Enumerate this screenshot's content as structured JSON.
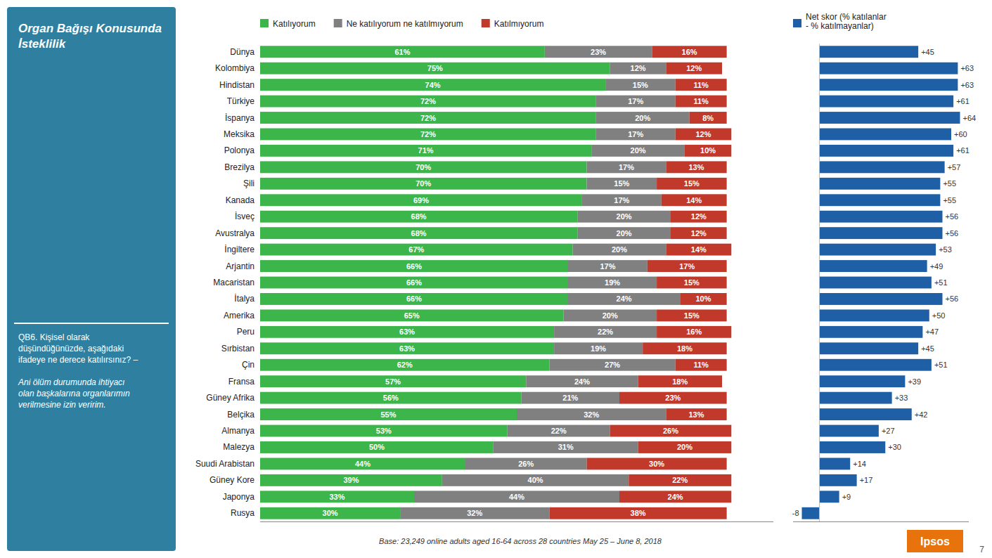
{
  "chart_data": [
    {
      "type": "bar",
      "orientation": "horizontal",
      "stacked": true,
      "title": "Organ Bağışı Konusunda\nİsteklilik",
      "categories": [
        "Dünya",
        "Kolombiya",
        "Hindistan",
        "Türkiye",
        "İspanya",
        "Meksika",
        "Polonya",
        "Brezilya",
        "Şili",
        "Kanada",
        "İsveç",
        "Avustralya",
        "İngiltere",
        "Arjantin",
        "Macaristan",
        "İtalya",
        "Amerika",
        "Peru",
        "Sırbistan",
        "Çin",
        "Fransa",
        "Güney Afrika",
        "Belçika",
        "Almanya",
        "Malezya",
        "Suudi Arabistan",
        "Güney Kore",
        "Japonya",
        "Rusya"
      ],
      "series": [
        {
          "name": "Katılıyorum",
          "color": "#3cb54a",
          "values": [
            61,
            75,
            74,
            72,
            72,
            72,
            71,
            70,
            70,
            69,
            68,
            68,
            67,
            66,
            66,
            66,
            65,
            63,
            63,
            62,
            57,
            56,
            55,
            53,
            50,
            44,
            39,
            33,
            30
          ],
          "value_labels": [
            "61%",
            "75%",
            "74%",
            "72%",
            "72%",
            "72%",
            "71%",
            "70%",
            "70%",
            "69%",
            "68%",
            "68%",
            "67%",
            "66%",
            "66%",
            "66%",
            "65%",
            "63%",
            "63%",
            "62%",
            "57%",
            "56%",
            "55%",
            "53%",
            "50%",
            "44%",
            "39%",
            "33%",
            "30%"
          ]
        },
        {
          "name": "Ne katılıyorum ne katılmıyorum",
          "color": "#808080",
          "values": [
            23,
            12,
            15,
            17,
            20,
            17,
            20,
            17,
            15,
            17,
            20,
            20,
            20,
            17,
            19,
            24,
            20,
            22,
            19,
            27,
            24,
            21,
            32,
            22,
            31,
            26,
            40,
            44,
            32
          ],
          "value_labels": [
            "23%",
            "12%",
            "15%",
            "17%",
            "20%",
            "17%",
            "20%",
            "17%",
            "15%",
            "17%",
            "20%",
            "20%",
            "20%",
            "17%",
            "19%",
            "24%",
            "20%",
            "22%",
            "19%",
            "27%",
            "24%",
            "21%",
            "32%",
            "22%",
            "31%",
            "26%",
            "40%",
            "44%",
            "32%"
          ]
        },
        {
          "name": "Katılmıyorum",
          "color": "#c0392b",
          "values": [
            16,
            12,
            11,
            11,
            8,
            12,
            10,
            13,
            15,
            14,
            12,
            12,
            14,
            17,
            15,
            10,
            15,
            16,
            18,
            11,
            18,
            23,
            13,
            26,
            20,
            30,
            22,
            24,
            38
          ],
          "value_labels": [
            "16%",
            "12%",
            "11%",
            "11%",
            "8%",
            "12%",
            "10%",
            "13%",
            "15%",
            "14%",
            "12%",
            "12%",
            "14%",
            "17%",
            "15%",
            "10%",
            "15%",
            "16%",
            "18%",
            "11%",
            "18%",
            "23%",
            "13%",
            "26%",
            "20%",
            "30%",
            "22%",
            "24%",
            "38%"
          ]
        }
      ],
      "xlim": [
        0,
        110
      ],
      "data_labels": true,
      "tick_labels": "y",
      "grid": false,
      "legend": "top",
      "annotations": [
        "QB6. Kişisel olarak\ndüşündüğünüzde, aşağıdaki\nifadeye ne derece katılırsınız? –",
        "Ani ölüm durumunda ihtiyacı\nolan başkalarına organlarımın\nverilmesine izin veririm.",
        "Base: 23,249 online adults aged 16-64 across 28 countries  May 25 – June 8, 2018",
        "Ipsos",
        "7"
      ]
    },
    {
      "type": "bar",
      "orientation": "horizontal",
      "categories": [
        "Dünya",
        "Kolombiya",
        "Hindistan",
        "Türkiye",
        "İspanya",
        "Meksika",
        "Polonya",
        "Brezilya",
        "Şili",
        "Kanada",
        "İsveç",
        "Avustralya",
        "İngiltere",
        "Arjantin",
        "Macaristan",
        "İtalya",
        "Amerika",
        "Peru",
        "Sırbistan",
        "Çin",
        "Fransa",
        "Güney Afrika",
        "Belçika",
        "Almanya",
        "Malezya",
        "Suudi Arabistan",
        "Güney Kore",
        "Japonya",
        "Rusya"
      ],
      "series": [
        {
          "name": "Net skor (% katılanlar\n- % katılmayanlar)",
          "color": "#1f5fa6",
          "values": [
            45,
            63,
            63,
            61,
            64,
            60,
            61,
            57,
            55,
            55,
            56,
            56,
            53,
            49,
            51,
            56,
            50,
            47,
            45,
            51,
            39,
            33,
            42,
            27,
            30,
            14,
            17,
            9,
            -8
          ],
          "value_labels": [
            "+45",
            "+63",
            "+63",
            "+61",
            "+64",
            "+60",
            "+61",
            "+57",
            "+55",
            "+55",
            "+56",
            "+56",
            "+53",
            "+49",
            "+51",
            "+56",
            "+50",
            "+47",
            "+45",
            "+51",
            "+39",
            "+33",
            "+42",
            "+27",
            "+30",
            "+14",
            "+17",
            "+9",
            "-8"
          ]
        }
      ],
      "xlim": [
        -12,
        68
      ],
      "data_labels": true,
      "tick_labels": false,
      "grid": false,
      "legend": "top"
    }
  ]
}
